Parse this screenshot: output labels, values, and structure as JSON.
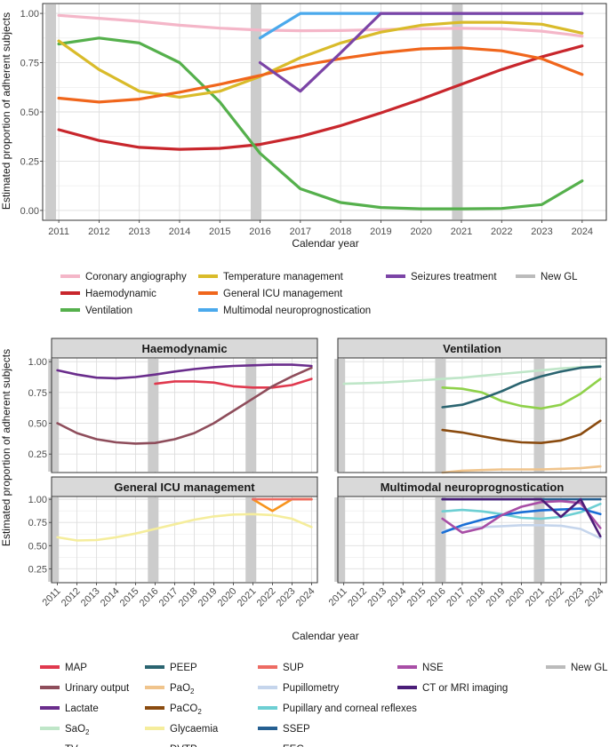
{
  "chart_data": [
    {
      "type": "line",
      "xlabel": "Calendar year",
      "ylabel": "Estimated proportion of adherent subjects",
      "x": [
        2011,
        2012,
        2013,
        2014,
        2015,
        2016,
        2017,
        2018,
        2019,
        2020,
        2021,
        2022,
        2023,
        2024
      ],
      "ylim": [
        0,
        1
      ],
      "yticks": [
        "0.00",
        "0.25",
        "0.50",
        "0.75",
        "1.00"
      ],
      "new_gl_years": [
        2010.8,
        2015.9,
        2020.9
      ],
      "series": [
        {
          "name": "Coronary angiography",
          "color": "#f4b6c8",
          "x": [
            2011,
            2012,
            2013,
            2014,
            2015,
            2016,
            2017,
            2018,
            2019,
            2020,
            2021,
            2022,
            2023,
            2024
          ],
          "values": [
            0.99,
            0.975,
            0.96,
            0.94,
            0.925,
            0.915,
            0.912,
            0.913,
            0.918,
            0.922,
            0.924,
            0.922,
            0.91,
            0.885
          ]
        },
        {
          "name": "Haemodynamic",
          "color": "#c8262c",
          "x": [
            2011,
            2012,
            2013,
            2014,
            2015,
            2016,
            2017,
            2018,
            2019,
            2020,
            2021,
            2022,
            2023,
            2024
          ],
          "values": [
            0.41,
            0.355,
            0.32,
            0.31,
            0.315,
            0.335,
            0.375,
            0.43,
            0.495,
            0.565,
            0.64,
            0.715,
            0.78,
            0.835
          ]
        },
        {
          "name": "Ventilation",
          "color": "#55b04c",
          "x": [
            2011,
            2012,
            2013,
            2014,
            2015,
            2016,
            2017,
            2018,
            2019,
            2020,
            2021,
            2022,
            2023,
            2024
          ],
          "values": [
            0.845,
            0.875,
            0.85,
            0.75,
            0.55,
            0.29,
            0.11,
            0.04,
            0.015,
            0.008,
            0.008,
            0.01,
            0.03,
            0.15
          ]
        },
        {
          "name": "Temperature management",
          "color": "#d9bb2a",
          "x": [
            2011,
            2012,
            2013,
            2014,
            2015,
            2016,
            2017,
            2018,
            2019,
            2020,
            2021,
            2022,
            2023,
            2024
          ],
          "values": [
            0.86,
            0.715,
            0.605,
            0.575,
            0.605,
            0.68,
            0.775,
            0.85,
            0.905,
            0.94,
            0.955,
            0.955,
            0.945,
            0.9
          ]
        },
        {
          "name": "General ICU management",
          "color": "#f0661c",
          "x": [
            2011,
            2012,
            2013,
            2014,
            2015,
            2016,
            2017,
            2018,
            2019,
            2020,
            2021,
            2022,
            2023,
            2024
          ],
          "values": [
            0.57,
            0.55,
            0.565,
            0.6,
            0.64,
            0.685,
            0.735,
            0.77,
            0.8,
            0.82,
            0.825,
            0.81,
            0.77,
            0.69
          ]
        },
        {
          "name": "Multimodal neuroprognostication",
          "color": "#4aa9ec",
          "x": [
            2016,
            2017,
            2018,
            2019,
            2020,
            2021,
            2022,
            2023,
            2024
          ],
          "values": [
            0.875,
            1.0,
            1.0,
            1.0,
            1.0,
            1.0,
            1.0,
            1.0,
            1.0
          ]
        },
        {
          "name": "Seizures treatment",
          "color": "#7b44a6",
          "x": [
            2016,
            2017,
            2018,
            2019,
            2020,
            2021,
            2022,
            2023,
            2024
          ],
          "values": [
            0.75,
            0.605,
            0.8,
            1.0,
            1.0,
            1.0,
            1.0,
            1.0,
            1.0
          ]
        }
      ],
      "legend": [
        {
          "label": "Coronary angiography",
          "color": "#f4b6c8"
        },
        {
          "label": "Haemodynamic",
          "color": "#c8262c"
        },
        {
          "label": "Ventilation",
          "color": "#55b04c"
        },
        {
          "label": "Temperature management",
          "color": "#d9bb2a"
        },
        {
          "label": "General ICU management",
          "color": "#f0661c"
        },
        {
          "label": "Multimodal neuroprognostication",
          "color": "#4aa9ec"
        },
        {
          "label": "Seizures treatment",
          "color": "#7b44a6"
        },
        {
          "label": "New GL",
          "color": "#bbbbbb"
        }
      ]
    },
    {
      "type": "line",
      "xlabel": "Calendar year",
      "ylabel": "Estimated proportion of adherent subjects",
      "x": [
        2011,
        2012,
        2013,
        2014,
        2015,
        2016,
        2017,
        2018,
        2019,
        2020,
        2021,
        2022,
        2023,
        2024
      ],
      "ylim": [
        0.1,
        1.03
      ],
      "yticks": [
        "0.25",
        "0.50",
        "0.75",
        "1.00"
      ],
      "new_gl_years": [
        2010.8,
        2015.9,
        2020.9
      ],
      "panels": [
        {
          "title": "Haemodynamic",
          "series": [
            {
              "name": "MAP",
              "color": "#e0394e",
              "x": [
                2016,
                2017,
                2018,
                2019,
                2020,
                2021,
                2022,
                2023,
                2024
              ],
              "values": [
                0.82,
                0.84,
                0.84,
                0.83,
                0.8,
                0.79,
                0.79,
                0.81,
                0.86
              ]
            },
            {
              "name": "Urinary output",
              "color": "#8e4d5b",
              "x": [
                2011,
                2012,
                2013,
                2014,
                2015,
                2016,
                2017,
                2018,
                2019,
                2020,
                2021,
                2022,
                2023,
                2024
              ],
              "values": [
                0.5,
                0.42,
                0.37,
                0.345,
                0.335,
                0.34,
                0.37,
                0.42,
                0.5,
                0.6,
                0.7,
                0.8,
                0.88,
                0.95
              ]
            },
            {
              "name": "Lactate",
              "color": "#6a2d8c",
              "x": [
                2011,
                2012,
                2013,
                2014,
                2015,
                2016,
                2017,
                2018,
                2019,
                2020,
                2021,
                2022,
                2023,
                2024
              ],
              "values": [
                0.93,
                0.895,
                0.87,
                0.865,
                0.875,
                0.895,
                0.92,
                0.94,
                0.955,
                0.965,
                0.97,
                0.975,
                0.975,
                0.965
              ]
            }
          ]
        },
        {
          "title": "Ventilation",
          "series": [
            {
              "name": "SaO2",
              "color": "#bfe6c8",
              "x": [
                2011,
                2012,
                2013,
                2014,
                2015,
                2016,
                2017,
                2018,
                2019,
                2020,
                2021,
                2022,
                2023,
                2024
              ],
              "values": [
                0.82,
                0.825,
                0.83,
                0.84,
                0.85,
                0.86,
                0.87,
                0.885,
                0.9,
                0.915,
                0.93,
                0.945,
                0.955,
                0.965
              ]
            },
            {
              "name": "TV",
              "color": "#8fd14a",
              "x": [
                2016,
                2017,
                2018,
                2019,
                2020,
                2021,
                2022,
                2023,
                2024
              ],
              "values": [
                0.79,
                0.78,
                0.75,
                0.68,
                0.64,
                0.62,
                0.65,
                0.74,
                0.86
              ]
            },
            {
              "name": "PEEP",
              "color": "#2a6470",
              "x": [
                2016,
                2017,
                2018,
                2019,
                2020,
                2021,
                2022,
                2023,
                2024
              ],
              "values": [
                0.63,
                0.65,
                0.7,
                0.76,
                0.83,
                0.88,
                0.92,
                0.95,
                0.96
              ]
            },
            {
              "name": "PaO2",
              "color": "#f0c48c",
              "x": [
                2016,
                2017,
                2018,
                2019,
                2020,
                2021,
                2022,
                2023,
                2024
              ],
              "values": [
                0.1,
                0.115,
                0.12,
                0.125,
                0.125,
                0.125,
                0.13,
                0.135,
                0.15
              ]
            },
            {
              "name": "PaCO2",
              "color": "#8a4b0f",
              "x": [
                2016,
                2017,
                2018,
                2019,
                2020,
                2021,
                2022,
                2023,
                2024
              ],
              "values": [
                0.445,
                0.425,
                0.395,
                0.365,
                0.345,
                0.34,
                0.36,
                0.41,
                0.52
              ]
            }
          ]
        },
        {
          "title": "General ICU management",
          "series": [
            {
              "name": "Glycaemia",
              "color": "#f5ed9c",
              "x": [
                2011,
                2012,
                2013,
                2014,
                2015,
                2016,
                2017,
                2018,
                2019,
                2020,
                2021,
                2022,
                2023,
                2024
              ],
              "values": [
                0.59,
                0.555,
                0.56,
                0.59,
                0.63,
                0.68,
                0.73,
                0.78,
                0.815,
                0.835,
                0.84,
                0.83,
                0.79,
                0.7
              ]
            },
            {
              "name": "DVTP",
              "color": "#f7941d",
              "x": [
                2021,
                2022,
                2023,
                2024
              ],
              "values": [
                1.0,
                0.875,
                1.0,
                1.0
              ]
            },
            {
              "name": "SUP",
              "color": "#ed6b63",
              "x": [
                2021,
                2022,
                2023,
                2024
              ],
              "values": [
                1.0,
                1.0,
                1.0,
                1.0
              ]
            }
          ]
        },
        {
          "title": "Multimodal neuroprognostication",
          "series": [
            {
              "name": "Pupillometry",
              "color": "#c5d5ec",
              "x": [
                2016,
                2017,
                2018,
                2019,
                2020,
                2021,
                2022,
                2023,
                2024
              ],
              "values": [
                0.66,
                0.69,
                0.7,
                0.71,
                0.72,
                0.72,
                0.715,
                0.68,
                0.58
              ]
            },
            {
              "name": "Pupillary and corneal reflexes",
              "color": "#6dcfd3",
              "x": [
                2016,
                2017,
                2018,
                2019,
                2020,
                2021,
                2022,
                2023,
                2024
              ],
              "values": [
                0.87,
                0.885,
                0.87,
                0.84,
                0.8,
                0.79,
                0.81,
                0.86,
                0.95
              ]
            },
            {
              "name": "SSEP",
              "color": "#255f91",
              "x": [
                2016,
                2017,
                2018,
                2019,
                2020,
                2021,
                2022,
                2023,
                2024
              ],
              "values": [
                1.0,
                1.0,
                1.0,
                1.0,
                1.0,
                1.0,
                1.0,
                1.0,
                1.0
              ]
            },
            {
              "name": "EEG",
              "color": "#1a6fd6",
              "x": [
                2016,
                2017,
                2018,
                2019,
                2020,
                2021,
                2022,
                2023,
                2024
              ],
              "values": [
                0.64,
                0.72,
                0.78,
                0.83,
                0.86,
                0.88,
                0.89,
                0.9,
                0.84
              ]
            },
            {
              "name": "NSE",
              "color": "#a84ea6",
              "x": [
                2016,
                2017,
                2018,
                2019,
                2020,
                2021,
                2022,
                2023,
                2024
              ],
              "values": [
                0.79,
                0.64,
                0.69,
                0.83,
                0.92,
                0.97,
                0.98,
                0.96,
                0.69
              ]
            },
            {
              "name": "CT or MRI imaging",
              "color": "#4a1d78",
              "x": [
                2016,
                2017,
                2018,
                2019,
                2020,
                2021,
                2022,
                2023,
                2024
              ],
              "values": [
                1.0,
                1.0,
                1.0,
                1.0,
                1.0,
                1.0,
                0.81,
                1.0,
                0.6
              ]
            }
          ]
        }
      ],
      "legend": [
        {
          "label": "MAP",
          "color": "#e0394e"
        },
        {
          "label": "Urinary output",
          "color": "#8e4d5b"
        },
        {
          "label": "Lactate",
          "color": "#6a2d8c"
        },
        {
          "label": "SaO",
          "sub": "2",
          "color": "#bfe6c8"
        },
        {
          "label": "TV",
          "color": "#8fd14a"
        },
        {
          "label": "PEEP",
          "color": "#2a6470"
        },
        {
          "label": "PaO",
          "sub": "2",
          "color": "#f0c48c"
        },
        {
          "label": "PaCO",
          "sub": "2",
          "color": "#8a4b0f"
        },
        {
          "label": "Glycaemia",
          "color": "#f5ed9c"
        },
        {
          "label": "DVTP",
          "color": "#f7941d"
        },
        {
          "label": "SUP",
          "color": "#ed6b63"
        },
        {
          "label": "Pupillometry",
          "color": "#c5d5ec"
        },
        {
          "label": "Pupillary and corneal reflexes",
          "color": "#6dcfd3"
        },
        {
          "label": "SSEP",
          "color": "#255f91"
        },
        {
          "label": "EEG",
          "color": "#1a6fd6"
        },
        {
          "label": "NSE",
          "color": "#a84ea6"
        },
        {
          "label": "CT or MRI imaging",
          "color": "#4a1d78"
        },
        {
          "label": "New GL",
          "color": "#bbbbbb"
        }
      ]
    }
  ]
}
